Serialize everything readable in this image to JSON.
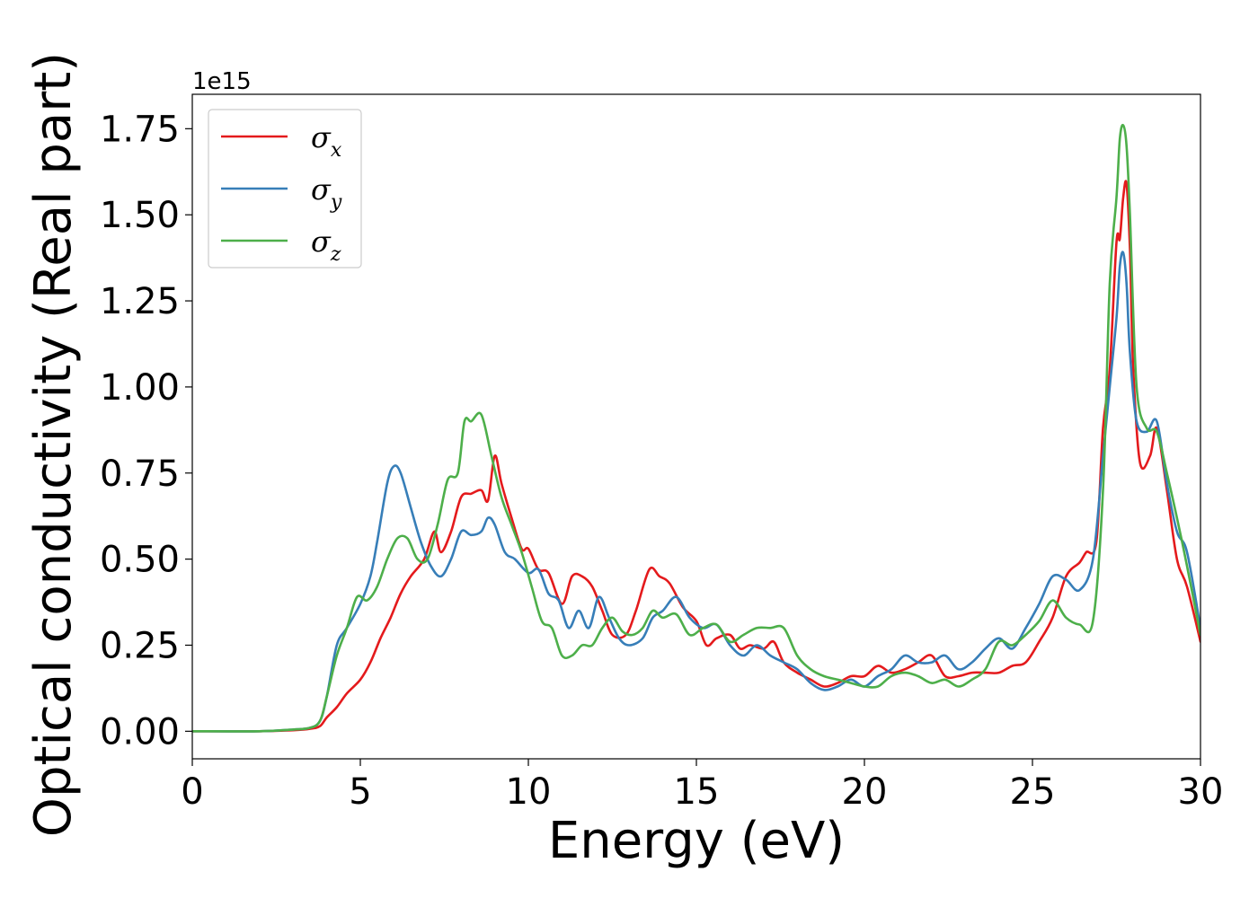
{
  "chart_data": {
    "type": "line",
    "title": "",
    "xlabel": "Energy (eV)",
    "ylabel": "Optical conductivity (Real part)",
    "y_offset_label": "1e15",
    "xlim": [
      0,
      30
    ],
    "ylim": [
      -0.08,
      1.85
    ],
    "x_ticks": [
      0,
      5,
      10,
      15,
      20,
      25,
      30
    ],
    "x_tick_labels": [
      "0",
      "5",
      "10",
      "15",
      "20",
      "25",
      "30"
    ],
    "y_ticks": [
      0,
      0.25,
      0.5,
      0.75,
      1.0,
      1.25,
      1.5,
      1.75
    ],
    "y_tick_labels": [
      "0.00",
      "0.25",
      "0.50",
      "0.75",
      "1.00",
      "1.25",
      "1.50",
      "1.75"
    ],
    "grid": false,
    "legend_position": "top-left",
    "series": [
      {
        "name": "σ",
        "subscript": "x",
        "color": "#e41a1c",
        "x": [
          0,
          2,
          3,
          3.5,
          3.8,
          4.0,
          4.3,
          4.6,
          5.0,
          5.3,
          5.6,
          5.9,
          6.2,
          6.5,
          6.9,
          7.2,
          7.4,
          7.7,
          8.0,
          8.3,
          8.6,
          8.8,
          9.0,
          9.2,
          9.5,
          9.8,
          10.0,
          10.3,
          10.6,
          11.0,
          11.3,
          11.6,
          11.9,
          12.2,
          12.5,
          12.9,
          13.2,
          13.6,
          13.9,
          14.2,
          14.6,
          15.0,
          15.3,
          15.6,
          16.0,
          16.3,
          16.6,
          17.0,
          17.3,
          17.6,
          18.0,
          18.4,
          18.8,
          19.2,
          19.6,
          20.0,
          20.4,
          20.8,
          21.2,
          21.6,
          22.0,
          22.4,
          22.8,
          23.2,
          23.6,
          24.0,
          24.4,
          24.8,
          25.2,
          25.6,
          26.0,
          26.4,
          26.6,
          26.9,
          27.1,
          27.3,
          27.5,
          27.6,
          27.7,
          27.8,
          27.9,
          28.0,
          28.2,
          28.5,
          28.7,
          29.0,
          29.3,
          29.6,
          30.0
        ],
        "y": [
          0.0,
          0.0,
          0.003,
          0.007,
          0.015,
          0.04,
          0.07,
          0.11,
          0.15,
          0.2,
          0.27,
          0.33,
          0.4,
          0.45,
          0.5,
          0.58,
          0.52,
          0.58,
          0.68,
          0.69,
          0.7,
          0.67,
          0.8,
          0.72,
          0.62,
          0.53,
          0.53,
          0.47,
          0.46,
          0.37,
          0.45,
          0.45,
          0.42,
          0.35,
          0.28,
          0.28,
          0.35,
          0.47,
          0.45,
          0.43,
          0.36,
          0.32,
          0.25,
          0.27,
          0.28,
          0.24,
          0.25,
          0.24,
          0.26,
          0.2,
          0.17,
          0.15,
          0.13,
          0.14,
          0.16,
          0.16,
          0.19,
          0.17,
          0.18,
          0.2,
          0.22,
          0.16,
          0.16,
          0.17,
          0.17,
          0.17,
          0.19,
          0.2,
          0.26,
          0.33,
          0.45,
          0.49,
          0.52,
          0.55,
          0.88,
          1.05,
          1.42,
          1.43,
          1.55,
          1.59,
          1.4,
          1.05,
          0.78,
          0.8,
          0.88,
          0.7,
          0.5,
          0.42,
          0.26
        ]
      },
      {
        "name": "σ",
        "subscript": "y",
        "color": "#377eb8",
        "x": [
          0,
          2,
          3,
          3.5,
          3.8,
          4.0,
          4.3,
          4.6,
          5.0,
          5.3,
          5.5,
          5.8,
          6.0,
          6.2,
          6.5,
          6.8,
          7.1,
          7.4,
          7.7,
          8.0,
          8.3,
          8.6,
          8.8,
          9.0,
          9.3,
          9.6,
          10.0,
          10.3,
          10.6,
          10.9,
          11.2,
          11.5,
          11.8,
          12.1,
          12.4,
          12.7,
          13.0,
          13.4,
          13.7,
          14.0,
          14.4,
          14.8,
          15.2,
          15.6,
          16.0,
          16.4,
          16.8,
          17.2,
          17.6,
          18.0,
          18.4,
          18.8,
          19.2,
          19.6,
          20.0,
          20.4,
          20.8,
          21.2,
          21.6,
          22.0,
          22.4,
          22.8,
          23.2,
          23.6,
          24.0,
          24.4,
          24.8,
          25.2,
          25.6,
          26.0,
          26.4,
          26.8,
          27.1,
          27.3,
          27.5,
          27.6,
          27.7,
          27.8,
          27.9,
          28.1,
          28.4,
          28.7,
          29.0,
          29.3,
          29.6,
          30.0
        ],
        "y": [
          0.0,
          0.0,
          0.005,
          0.01,
          0.03,
          0.1,
          0.25,
          0.3,
          0.37,
          0.45,
          0.55,
          0.72,
          0.77,
          0.75,
          0.65,
          0.55,
          0.48,
          0.45,
          0.5,
          0.58,
          0.57,
          0.58,
          0.62,
          0.6,
          0.52,
          0.5,
          0.46,
          0.47,
          0.4,
          0.38,
          0.3,
          0.35,
          0.3,
          0.39,
          0.33,
          0.27,
          0.25,
          0.27,
          0.33,
          0.35,
          0.39,
          0.33,
          0.3,
          0.31,
          0.25,
          0.22,
          0.25,
          0.22,
          0.2,
          0.18,
          0.14,
          0.12,
          0.13,
          0.15,
          0.13,
          0.16,
          0.18,
          0.22,
          0.2,
          0.2,
          0.22,
          0.18,
          0.2,
          0.24,
          0.27,
          0.24,
          0.3,
          0.37,
          0.45,
          0.44,
          0.41,
          0.5,
          0.8,
          1.0,
          1.2,
          1.35,
          1.39,
          1.3,
          1.1,
          0.9,
          0.87,
          0.9,
          0.72,
          0.58,
          0.52,
          0.3
        ]
      },
      {
        "name": "σ",
        "subscript": "z",
        "color": "#4daf4a",
        "x": [
          0,
          2,
          3,
          3.5,
          3.8,
          4.0,
          4.3,
          4.6,
          4.9,
          5.2,
          5.5,
          5.8,
          6.1,
          6.4,
          6.7,
          7.0,
          7.3,
          7.6,
          7.9,
          8.1,
          8.3,
          8.6,
          8.9,
          9.2,
          9.5,
          9.8,
          10.1,
          10.4,
          10.7,
          11.0,
          11.3,
          11.6,
          11.9,
          12.2,
          12.5,
          12.8,
          13.1,
          13.4,
          13.7,
          14.0,
          14.4,
          14.8,
          15.2,
          15.6,
          16.0,
          16.4,
          16.8,
          17.2,
          17.6,
          18.0,
          18.4,
          18.8,
          19.2,
          19.6,
          20.0,
          20.4,
          20.8,
          21.2,
          21.6,
          22.0,
          22.4,
          22.8,
          23.2,
          23.6,
          24.0,
          24.4,
          24.8,
          25.2,
          25.6,
          26.0,
          26.4,
          26.8,
          27.1,
          27.3,
          27.5,
          27.6,
          27.7,
          27.8,
          27.9,
          28.1,
          28.4,
          28.7,
          29.0,
          29.3,
          29.6,
          30.0
        ],
        "y": [
          0.0,
          0.0,
          0.005,
          0.01,
          0.03,
          0.1,
          0.22,
          0.3,
          0.39,
          0.38,
          0.42,
          0.5,
          0.56,
          0.56,
          0.5,
          0.5,
          0.6,
          0.73,
          0.75,
          0.9,
          0.9,
          0.92,
          0.8,
          0.68,
          0.6,
          0.52,
          0.42,
          0.32,
          0.3,
          0.22,
          0.22,
          0.25,
          0.25,
          0.3,
          0.33,
          0.29,
          0.28,
          0.3,
          0.35,
          0.33,
          0.34,
          0.28,
          0.3,
          0.31,
          0.26,
          0.28,
          0.3,
          0.3,
          0.3,
          0.22,
          0.18,
          0.16,
          0.15,
          0.14,
          0.13,
          0.13,
          0.16,
          0.17,
          0.16,
          0.14,
          0.15,
          0.13,
          0.15,
          0.18,
          0.26,
          0.25,
          0.28,
          0.32,
          0.38,
          0.33,
          0.31,
          0.32,
          0.7,
          1.3,
          1.55,
          1.72,
          1.76,
          1.7,
          1.5,
          1.0,
          0.88,
          0.87,
          0.75,
          0.62,
          0.48,
          0.28
        ]
      }
    ]
  }
}
